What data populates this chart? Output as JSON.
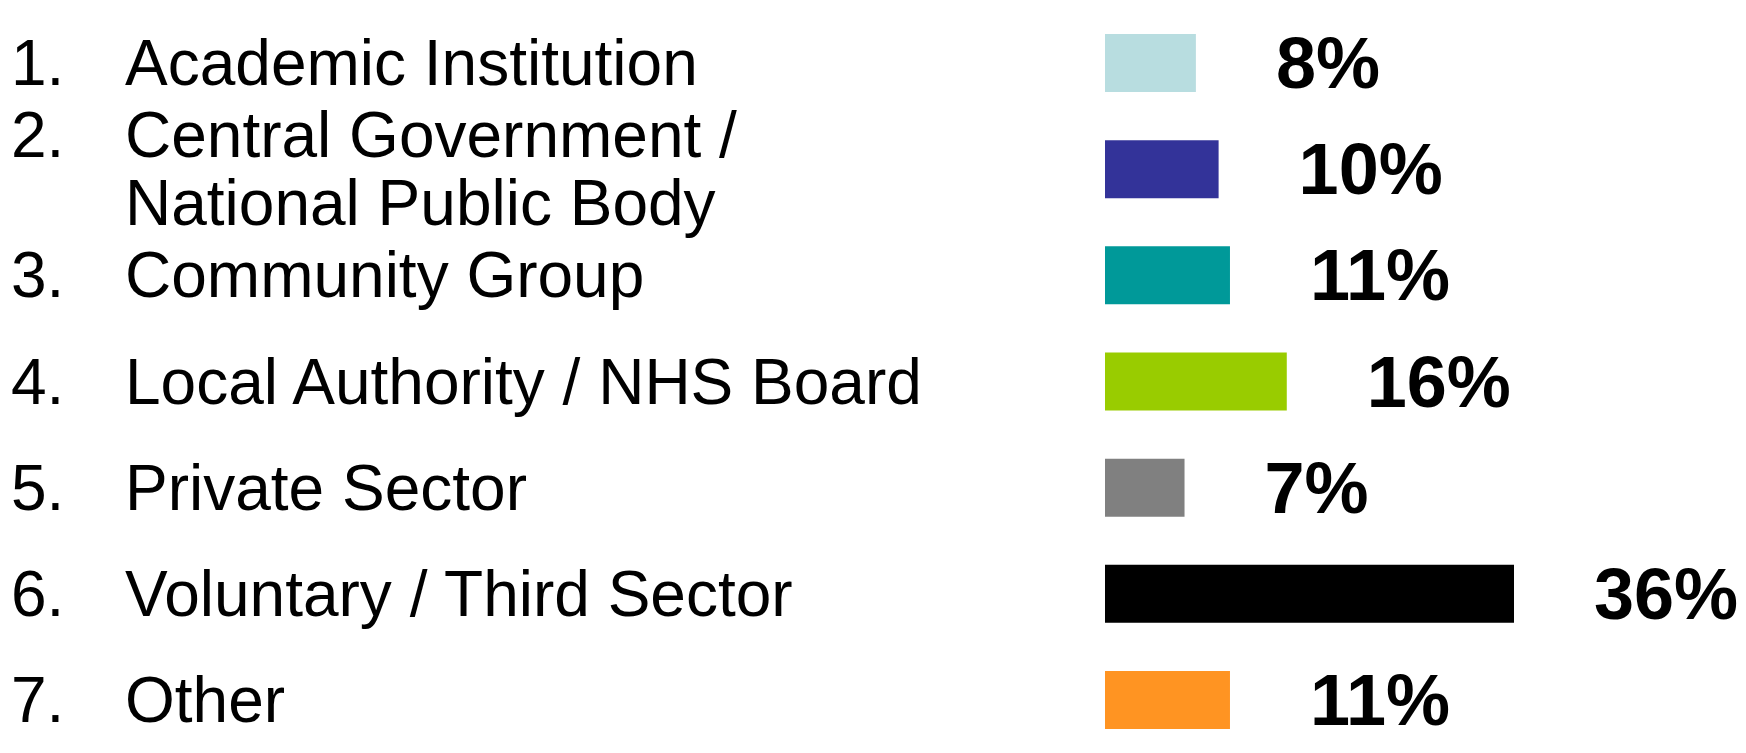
{
  "chart_data": {
    "type": "bar",
    "orientation": "horizontal",
    "categories": [
      "1. Academic Institution",
      "2. Central Government / National Public Body",
      "3. Community Group",
      "4. Local Authority / NHS Board",
      "5. Private Sector",
      "6. Voluntary / Third Sector",
      "7. Other"
    ],
    "values": [
      8,
      10,
      11,
      16,
      7,
      36,
      11
    ],
    "colors": [
      "#b8dde0",
      "#333399",
      "#009999",
      "#99cc00",
      "#808080",
      "#000000",
      "#ff9422"
    ],
    "value_labels": [
      "8%",
      "10%",
      "11%",
      "16%",
      "7%",
      "36%",
      "11%"
    ]
  }
}
